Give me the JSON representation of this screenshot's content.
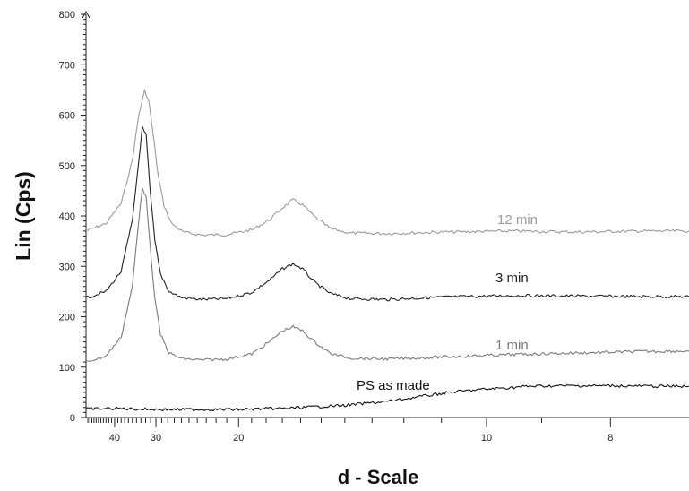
{
  "chart_data": {
    "type": "line",
    "title": "",
    "xlabel": "d - Scale",
    "ylabel": "Lin (Cps)",
    "ylim": [
      0,
      800
    ],
    "xlim": [
      52,
      7.1
    ],
    "x_scale": "reciprocal",
    "grid": false,
    "y_ticks": [
      0,
      100,
      200,
      300,
      400,
      500,
      600,
      700,
      800
    ],
    "x_ticks": [
      40,
      30,
      20,
      10,
      8
    ],
    "series": [
      {
        "name": "12 min",
        "color": "#9a9a9a",
        "points": [
          [
            52,
            370
          ],
          [
            43,
            385
          ],
          [
            38,
            425
          ],
          [
            35,
            510
          ],
          [
            33.5,
            600
          ],
          [
            32.2,
            648
          ],
          [
            31.4,
            630
          ],
          [
            30.5,
            560
          ],
          [
            29.6,
            480
          ],
          [
            28.6,
            420
          ],
          [
            27.4,
            385
          ],
          [
            25.8,
            368
          ],
          [
            23.5,
            362
          ],
          [
            21,
            363
          ],
          [
            19,
            372
          ],
          [
            17.8,
            392
          ],
          [
            17,
            416
          ],
          [
            16.4,
            432
          ],
          [
            15.9,
            422
          ],
          [
            15.3,
            398
          ],
          [
            14.6,
            375
          ],
          [
            13.8,
            366
          ],
          [
            12.5,
            365
          ],
          [
            11,
            368
          ],
          [
            9.5,
            370
          ],
          [
            8.5,
            368
          ],
          [
            7.6,
            370
          ],
          [
            7.1,
            370
          ]
        ]
      },
      {
        "name": "3 min",
        "color": "#222222",
        "points": [
          [
            52,
            237
          ],
          [
            43,
            250
          ],
          [
            38,
            290
          ],
          [
            35,
            390
          ],
          [
            33.6,
            500
          ],
          [
            32.7,
            575
          ],
          [
            31.9,
            560
          ],
          [
            31.1,
            450
          ],
          [
            30.2,
            350
          ],
          [
            29.2,
            285
          ],
          [
            27.8,
            250
          ],
          [
            26,
            238
          ],
          [
            23.5,
            234
          ],
          [
            21,
            236
          ],
          [
            19,
            248
          ],
          [
            17.8,
            272
          ],
          [
            17,
            295
          ],
          [
            16.4,
            305
          ],
          [
            15.9,
            295
          ],
          [
            15.3,
            268
          ],
          [
            14.6,
            246
          ],
          [
            13.8,
            236
          ],
          [
            12.5,
            234
          ],
          [
            11,
            239
          ],
          [
            9.5,
            242
          ],
          [
            8.5,
            241
          ],
          [
            7.6,
            240
          ],
          [
            7.1,
            240
          ]
        ]
      },
      {
        "name": "1 min",
        "color": "#7a7a7a",
        "points": [
          [
            52,
            110
          ],
          [
            43,
            122
          ],
          [
            38,
            160
          ],
          [
            35,
            260
          ],
          [
            33.6,
            380
          ],
          [
            32.7,
            455
          ],
          [
            31.9,
            440
          ],
          [
            31.1,
            340
          ],
          [
            30.2,
            235
          ],
          [
            29.2,
            165
          ],
          [
            27.8,
            128
          ],
          [
            26,
            117
          ],
          [
            23.5,
            114
          ],
          [
            21,
            116
          ],
          [
            19,
            126
          ],
          [
            17.8,
            150
          ],
          [
            17,
            172
          ],
          [
            16.4,
            180
          ],
          [
            15.9,
            172
          ],
          [
            15.3,
            150
          ],
          [
            14.6,
            127
          ],
          [
            13.8,
            118
          ],
          [
            12.5,
            116
          ],
          [
            11,
            120
          ],
          [
            9.5,
            125
          ],
          [
            8.5,
            128
          ],
          [
            7.6,
            131
          ],
          [
            7.1,
            132
          ]
        ]
      },
      {
        "name": "PS as made",
        "color": "#111111",
        "points": [
          [
            52,
            17
          ],
          [
            40,
            18
          ],
          [
            30,
            16
          ],
          [
            20,
            16
          ],
          [
            17,
            18
          ],
          [
            14,
            24
          ],
          [
            12.5,
            32
          ],
          [
            11.5,
            42
          ],
          [
            10.8,
            50
          ],
          [
            10.2,
            55
          ],
          [
            9.6,
            59
          ],
          [
            9.2,
            62
          ],
          [
            8.6,
            63
          ],
          [
            8,
            63
          ],
          [
            7.5,
            62
          ],
          [
            7.1,
            62
          ]
        ]
      }
    ]
  },
  "labels": {
    "12min": "12 min",
    "3min": "3 min",
    "1min": "1 min",
    "ps": "PS as made"
  }
}
